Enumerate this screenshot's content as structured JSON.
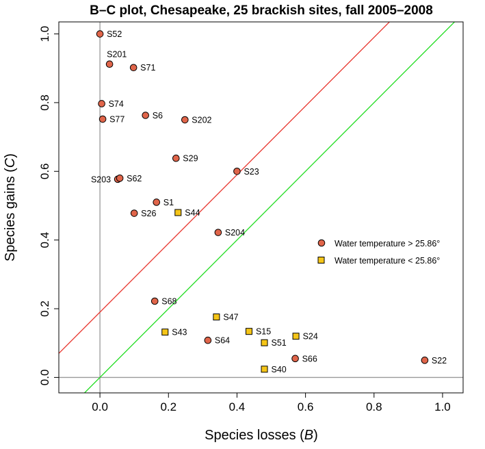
{
  "chart_data": {
    "type": "scatter",
    "title": "B–C plot, Chesapeake, 25 brackish sites, fall 2005–2008",
    "xlabel": {
      "prefix": "Species losses (",
      "var": "B",
      "suffix": ")"
    },
    "ylabel": {
      "prefix": "Species gains (",
      "var": "C",
      "suffix": ")"
    },
    "xlim": [
      -0.12,
      1.06
    ],
    "ylim": [
      -0.045,
      1.035
    ],
    "x_ticks": [
      {
        "value": 0.0,
        "label": "0.0"
      },
      {
        "value": 0.2,
        "label": "0.2"
      },
      {
        "value": 0.4,
        "label": "0.4"
      },
      {
        "value": 0.6,
        "label": "0.6"
      },
      {
        "value": 0.8,
        "label": "0.8"
      },
      {
        "value": 1.0,
        "label": "1.0"
      }
    ],
    "y_ticks": [
      {
        "value": 0.0,
        "label": "0.0"
      },
      {
        "value": 0.2,
        "label": "0.2"
      },
      {
        "value": 0.4,
        "label": "0.4"
      },
      {
        "value": 0.6,
        "label": "0.6"
      },
      {
        "value": 0.8,
        "label": "0.8"
      },
      {
        "value": 1.0,
        "label": "1.0"
      }
    ],
    "reference_lines": [
      {
        "name": "gray-vertical-zero",
        "type": "vline",
        "x": 0,
        "color": "#999999"
      },
      {
        "name": "gray-horizontal-zero",
        "type": "hline",
        "y": 0,
        "color": "#999999"
      },
      {
        "name": "red-line",
        "type": "abline",
        "intercept": 0.19,
        "slope": 1.0,
        "color": "#e8362e"
      },
      {
        "name": "green-line",
        "type": "abline",
        "intercept": 0.0,
        "slope": 1.0,
        "color": "#22dd22"
      }
    ],
    "series": [
      {
        "name": "Water temperature > 25.86°",
        "marker": "circle",
        "color": "#e0654a",
        "points": [
          {
            "label": "S52",
            "x": 0.0,
            "y": 1.0,
            "label_side": "right"
          },
          {
            "label": "S201",
            "x": 0.028,
            "y": 0.912,
            "label_side": "above"
          },
          {
            "label": "S71",
            "x": 0.098,
            "y": 0.902,
            "label_side": "right"
          },
          {
            "label": "S74",
            "x": 0.005,
            "y": 0.797,
            "label_side": "right"
          },
          {
            "label": "S77",
            "x": 0.008,
            "y": 0.752,
            "label_side": "right"
          },
          {
            "label": "S6",
            "x": 0.133,
            "y": 0.763,
            "label_side": "right"
          },
          {
            "label": "S202",
            "x": 0.248,
            "y": 0.75,
            "label_side": "right"
          },
          {
            "label": "S29",
            "x": 0.222,
            "y": 0.638,
            "label_side": "right"
          },
          {
            "label": "S23",
            "x": 0.4,
            "y": 0.6,
            "label_side": "right"
          },
          {
            "label": "S203",
            "x": 0.052,
            "y": 0.577,
            "label_side": "left"
          },
          {
            "label": "S62",
            "x": 0.058,
            "y": 0.58,
            "label_side": "right"
          },
          {
            "label": "S1",
            "x": 0.165,
            "y": 0.51,
            "label_side": "right"
          },
          {
            "label": "S26",
            "x": 0.1,
            "y": 0.478,
            "label_side": "right"
          },
          {
            "label": "S204",
            "x": 0.345,
            "y": 0.422,
            "label_side": "right"
          },
          {
            "label": "S68",
            "x": 0.16,
            "y": 0.222,
            "label_side": "right"
          },
          {
            "label": "S64",
            "x": 0.315,
            "y": 0.108,
            "label_side": "right"
          },
          {
            "label": "S66",
            "x": 0.57,
            "y": 0.055,
            "label_side": "right"
          },
          {
            "label": "S22",
            "x": 0.948,
            "y": 0.05,
            "label_side": "right"
          }
        ]
      },
      {
        "name": "Water temperature < 25.86°",
        "marker": "square",
        "color": "#f5c518",
        "points": [
          {
            "label": "S44",
            "x": 0.228,
            "y": 0.48,
            "label_side": "right"
          },
          {
            "label": "S47",
            "x": 0.34,
            "y": 0.176,
            "label_side": "right"
          },
          {
            "label": "S43",
            "x": 0.19,
            "y": 0.132,
            "label_side": "right"
          },
          {
            "label": "S15",
            "x": 0.435,
            "y": 0.134,
            "label_side": "right"
          },
          {
            "label": "S51",
            "x": 0.48,
            "y": 0.101,
            "label_side": "right"
          },
          {
            "label": "S24",
            "x": 0.572,
            "y": 0.12,
            "label_side": "right"
          },
          {
            "label": "S40",
            "x": 0.48,
            "y": 0.024,
            "label_side": "right"
          }
        ]
      }
    ],
    "legend": {
      "position": "right"
    }
  }
}
